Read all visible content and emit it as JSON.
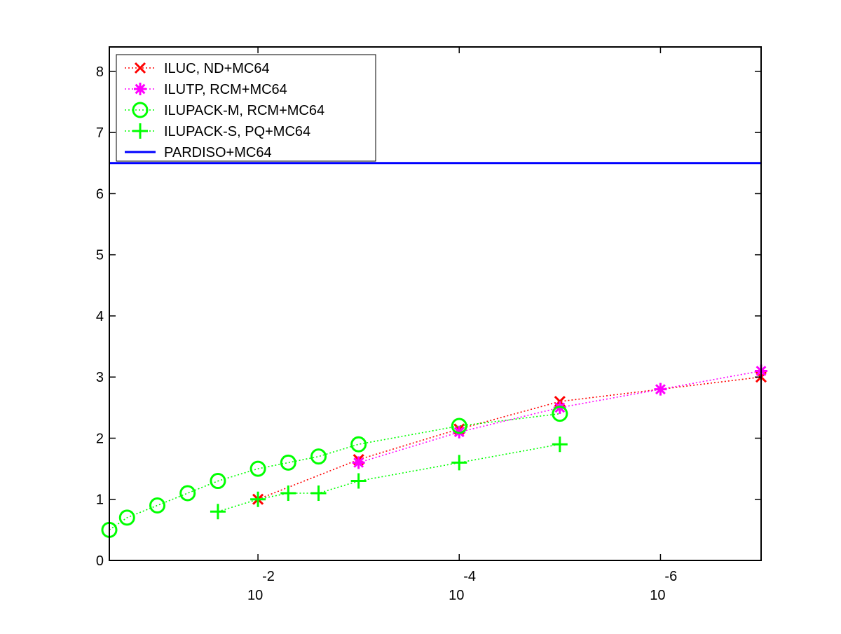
{
  "chart_data": {
    "type": "line",
    "title": "",
    "xlabel": "",
    "ylabel": "",
    "x_scale": "log",
    "x_reversed": true,
    "xlim": [
      0.3,
      1e-07
    ],
    "ylim": [
      0,
      8.4
    ],
    "x_ticks": [
      {
        "value": 0.01,
        "base": "10",
        "exponent": "-2"
      },
      {
        "value": 0.0001,
        "base": "10",
        "exponent": "-4"
      },
      {
        "value": 1e-06,
        "base": "10",
        "exponent": "-6"
      }
    ],
    "y_ticks": [
      {
        "value": 0,
        "label": "0"
      },
      {
        "value": 1,
        "label": "1"
      },
      {
        "value": 2,
        "label": "2"
      },
      {
        "value": 3,
        "label": "3"
      },
      {
        "value": 4,
        "label": "4"
      },
      {
        "value": 5,
        "label": "5"
      },
      {
        "value": 6,
        "label": "6"
      },
      {
        "value": 7,
        "label": "7"
      },
      {
        "value": 8,
        "label": "8"
      }
    ],
    "grid": false,
    "legend": "top-left",
    "series": [
      {
        "name": "ILUC,  ND+MC64",
        "color": "#ff0000",
        "marker": "x",
        "line": "dotted",
        "points": [
          [
            0.01,
            1.0
          ],
          [
            0.001,
            1.65
          ],
          [
            0.0001,
            2.15
          ],
          [
            1e-05,
            2.6
          ],
          [
            1e-07,
            3.0
          ]
        ]
      },
      {
        "name": "ILUTP, RCM+MC64",
        "color": "#ff00ff",
        "marker": "asterisk",
        "line": "dotted",
        "points": [
          [
            0.001,
            1.6
          ],
          [
            0.0001,
            2.1
          ],
          [
            1e-05,
            2.5
          ],
          [
            1e-06,
            2.8
          ],
          [
            1e-07,
            3.1
          ]
        ]
      },
      {
        "name": "ILUPACK-M, RCM+MC64",
        "color": "#00ff00",
        "marker": "circle",
        "line": "dotted",
        "points": [
          [
            0.3,
            0.5
          ],
          [
            0.2,
            0.7
          ],
          [
            0.1,
            0.9
          ],
          [
            0.05,
            1.1
          ],
          [
            0.025,
            1.3
          ],
          [
            0.01,
            1.5
          ],
          [
            0.005,
            1.6
          ],
          [
            0.0025,
            1.7
          ],
          [
            0.001,
            1.9
          ],
          [
            0.0001,
            2.2
          ],
          [
            1e-05,
            2.4
          ]
        ]
      },
      {
        "name": "ILUPACK-S, PQ+MC64",
        "color": "#00ff00",
        "marker": "plus",
        "line": "dotted",
        "points": [
          [
            0.025,
            0.8
          ],
          [
            0.01,
            1.0
          ],
          [
            0.005,
            1.1
          ],
          [
            0.0025,
            1.1
          ],
          [
            0.001,
            1.3
          ],
          [
            0.0001,
            1.6
          ],
          [
            1e-05,
            1.9
          ]
        ]
      },
      {
        "name": "PARDISO+MC64",
        "color": "#0000ff",
        "marker": "none",
        "line": "solid",
        "points": [
          [
            0.3,
            6.5
          ],
          [
            1e-07,
            6.5
          ]
        ]
      }
    ]
  }
}
